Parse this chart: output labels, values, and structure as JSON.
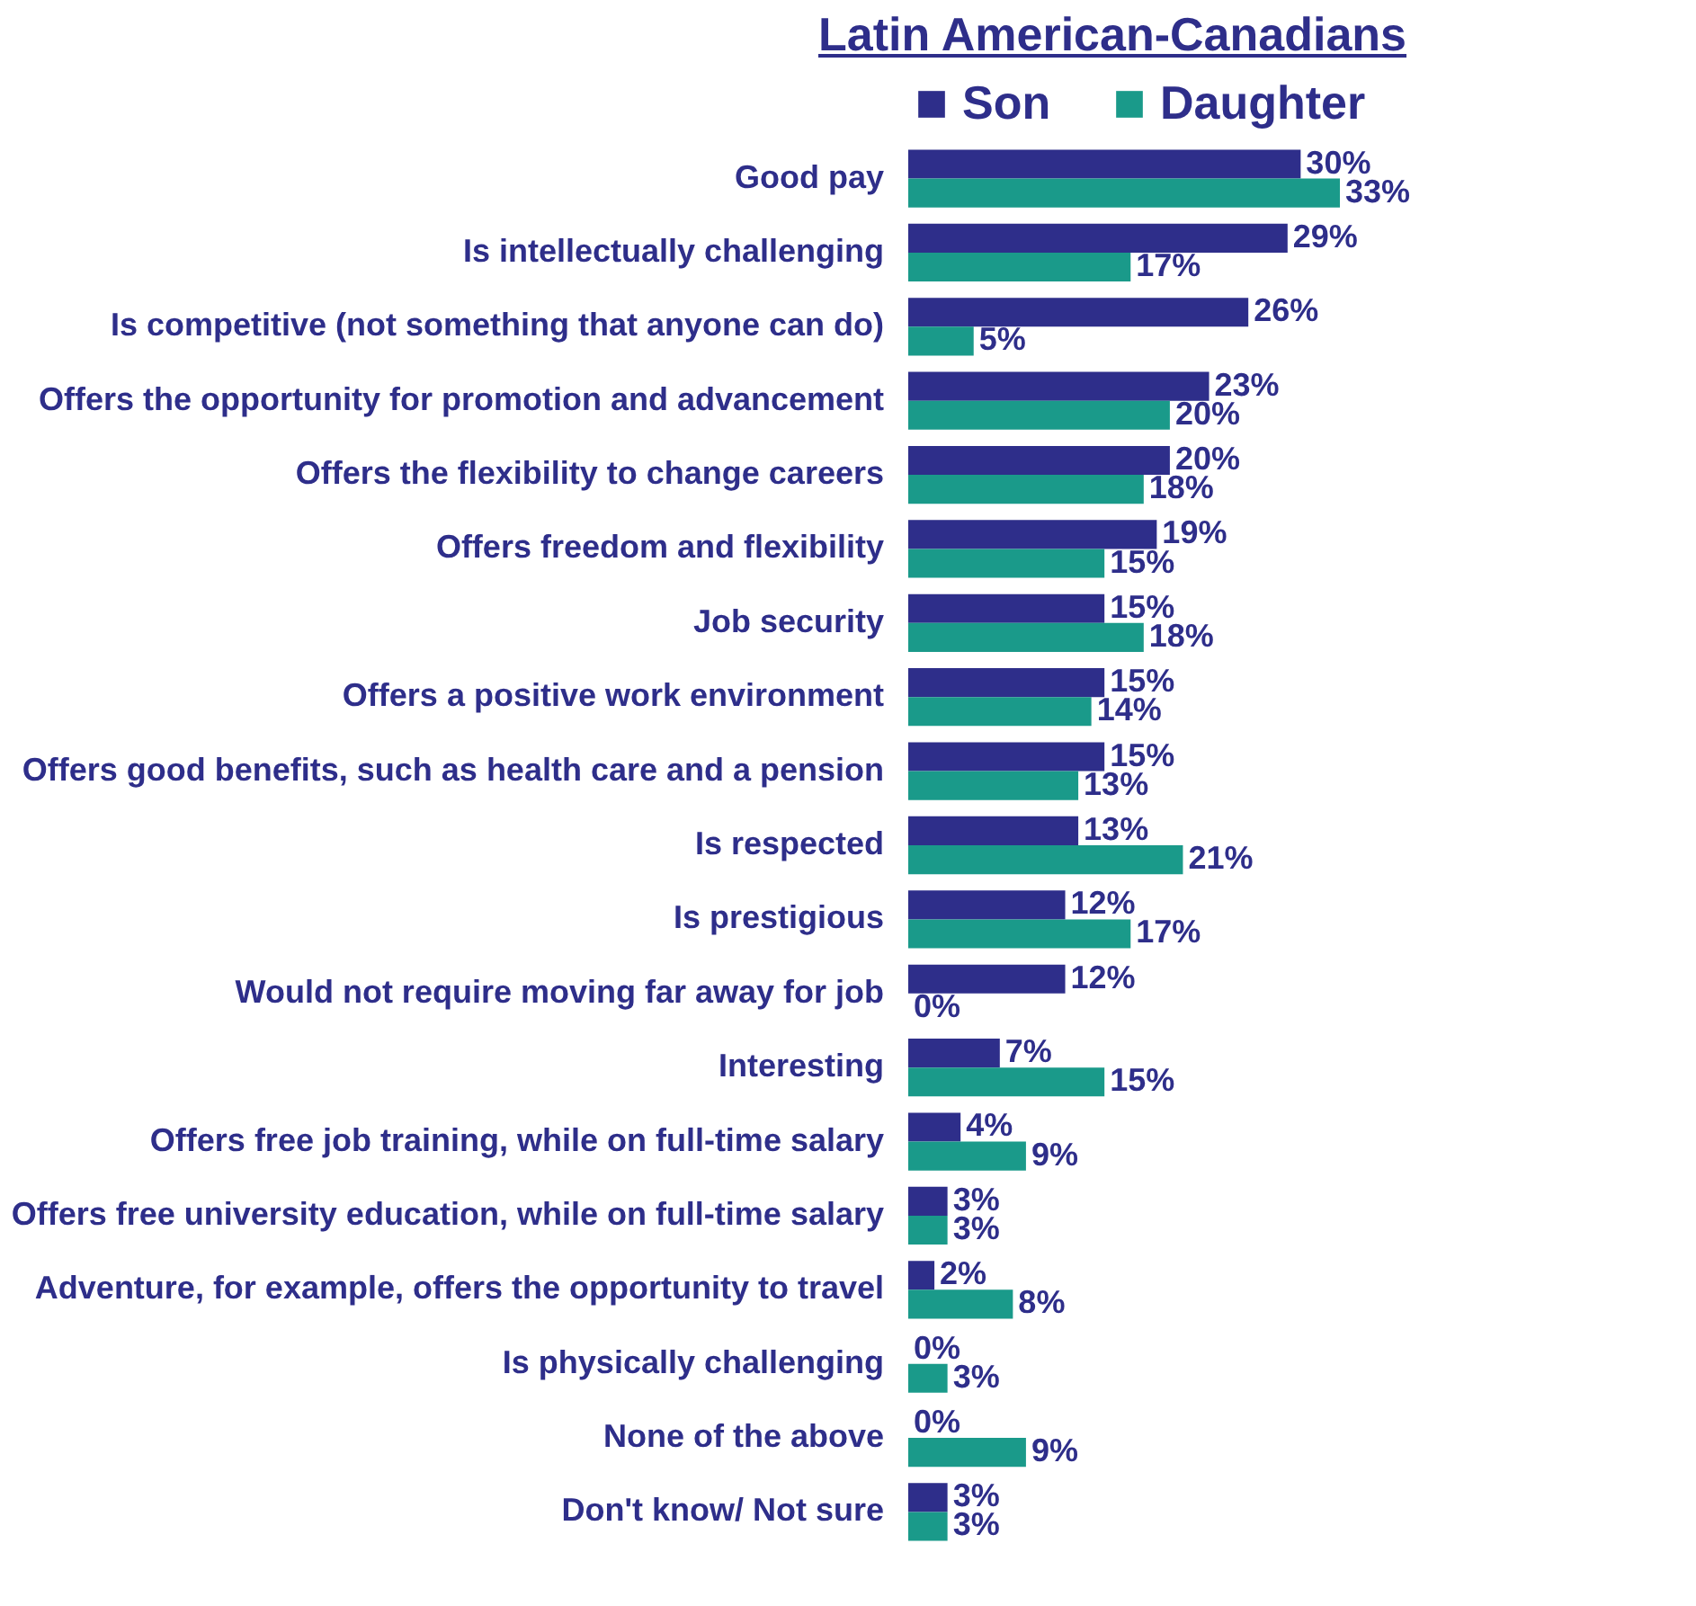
{
  "chart_data": {
    "type": "bar",
    "orientation": "horizontal",
    "title": "Latin American-Canadians",
    "legend": "top",
    "categories": [
      "Good pay",
      "Is intellectually challenging",
      "Is competitive (not something that anyone can do)",
      "Offers the opportunity for promotion and advancement",
      "Offers the flexibility to change careers",
      "Offers freedom and flexibility",
      "Job security",
      "Offers a positive work environment",
      "Offers good benefits, such as health care and a pension",
      "Is respected",
      "Is prestigious",
      "Would not require moving far away for job",
      "Interesting",
      "Offers free job training, while on full-time salary",
      "Offers free university education, while on full-time salary",
      "Adventure, for example, offers the opportunity to travel",
      "Is physically challenging",
      "None of the above",
      "Don't know/ Not sure"
    ],
    "series": [
      {
        "name": "Son",
        "color": "#2e2e8a",
        "values": [
          30,
          29,
          26,
          23,
          20,
          19,
          15,
          15,
          15,
          13,
          12,
          12,
          7,
          4,
          3,
          2,
          0,
          0,
          3
        ],
        "value_labels": [
          "30%",
          "29%",
          "26%",
          "23%",
          "20%",
          "19%",
          "15%",
          "15%",
          "15%",
          "13%",
          "12%",
          "12%",
          "7%",
          "4%",
          "3%",
          "2%",
          "0%",
          "0%",
          "3%"
        ]
      },
      {
        "name": "Daughter",
        "color": "#1a9a8a",
        "values": [
          33,
          17,
          5,
          20,
          18,
          15,
          18,
          14,
          13,
          21,
          17,
          0,
          15,
          9,
          3,
          8,
          3,
          9,
          3
        ],
        "value_labels": [
          "33%",
          "17%",
          "5%",
          "20%",
          "18%",
          "15%",
          "18%",
          "14%",
          "13%",
          "21%",
          "17%",
          "0%",
          "15%",
          "9%",
          "3%",
          "8%",
          "3%",
          "9%",
          "3%"
        ]
      }
    ]
  }
}
